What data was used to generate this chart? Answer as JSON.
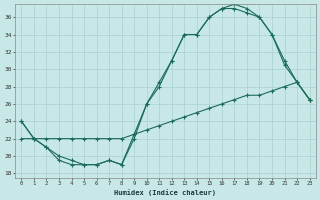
{
  "xlabel": "Humidex (Indice chaleur)",
  "background_color": "#c8e8e8",
  "grid_color": "#a8d0d0",
  "line_color": "#1a6b5a",
  "xlim_min": -0.5,
  "xlim_max": 23.5,
  "ylim_min": 17.5,
  "ylim_max": 37.5,
  "xticks": [
    0,
    1,
    2,
    3,
    4,
    5,
    6,
    7,
    8,
    9,
    10,
    11,
    12,
    13,
    14,
    15,
    16,
    17,
    18,
    19,
    20,
    21,
    22,
    23
  ],
  "yticks": [
    18,
    20,
    22,
    24,
    26,
    28,
    30,
    32,
    34,
    36
  ],
  "line1_x": [
    0,
    1,
    2,
    3,
    4,
    5,
    6,
    7,
    8,
    9,
    10,
    11,
    12,
    13,
    14,
    15,
    16,
    17,
    18,
    19,
    20,
    21,
    22,
    23
  ],
  "line1_y": [
    24,
    22,
    21,
    19.5,
    19,
    19,
    19,
    19.5,
    19,
    22.5,
    26,
    28.5,
    31,
    34,
    34,
    36,
    37,
    37.5,
    37,
    36,
    34,
    31,
    28.5,
    26.5
  ],
  "line2_x": [
    0,
    1,
    2,
    3,
    4,
    5,
    6,
    7,
    8,
    9,
    10,
    11,
    12,
    13,
    14,
    15,
    16,
    17,
    18,
    19,
    20,
    21,
    22,
    23
  ],
  "line2_y": [
    24,
    22,
    21,
    20,
    19.5,
    19,
    19,
    19.5,
    19,
    22,
    26,
    28,
    31,
    34,
    34,
    36,
    37,
    37,
    36.5,
    36,
    34,
    30.5,
    28.5,
    26.5
  ],
  "line3_x": [
    0,
    1,
    2,
    3,
    4,
    5,
    6,
    7,
    8,
    9,
    10,
    11,
    12,
    13,
    14,
    15,
    16,
    17,
    18,
    19,
    20,
    21,
    22,
    23
  ],
  "line3_y": [
    22,
    22,
    22,
    22,
    22,
    22,
    22,
    22,
    22,
    22.5,
    23,
    23.5,
    24,
    24.5,
    25,
    25.5,
    26,
    26.5,
    27,
    27,
    27.5,
    28,
    28.5,
    26.5
  ]
}
